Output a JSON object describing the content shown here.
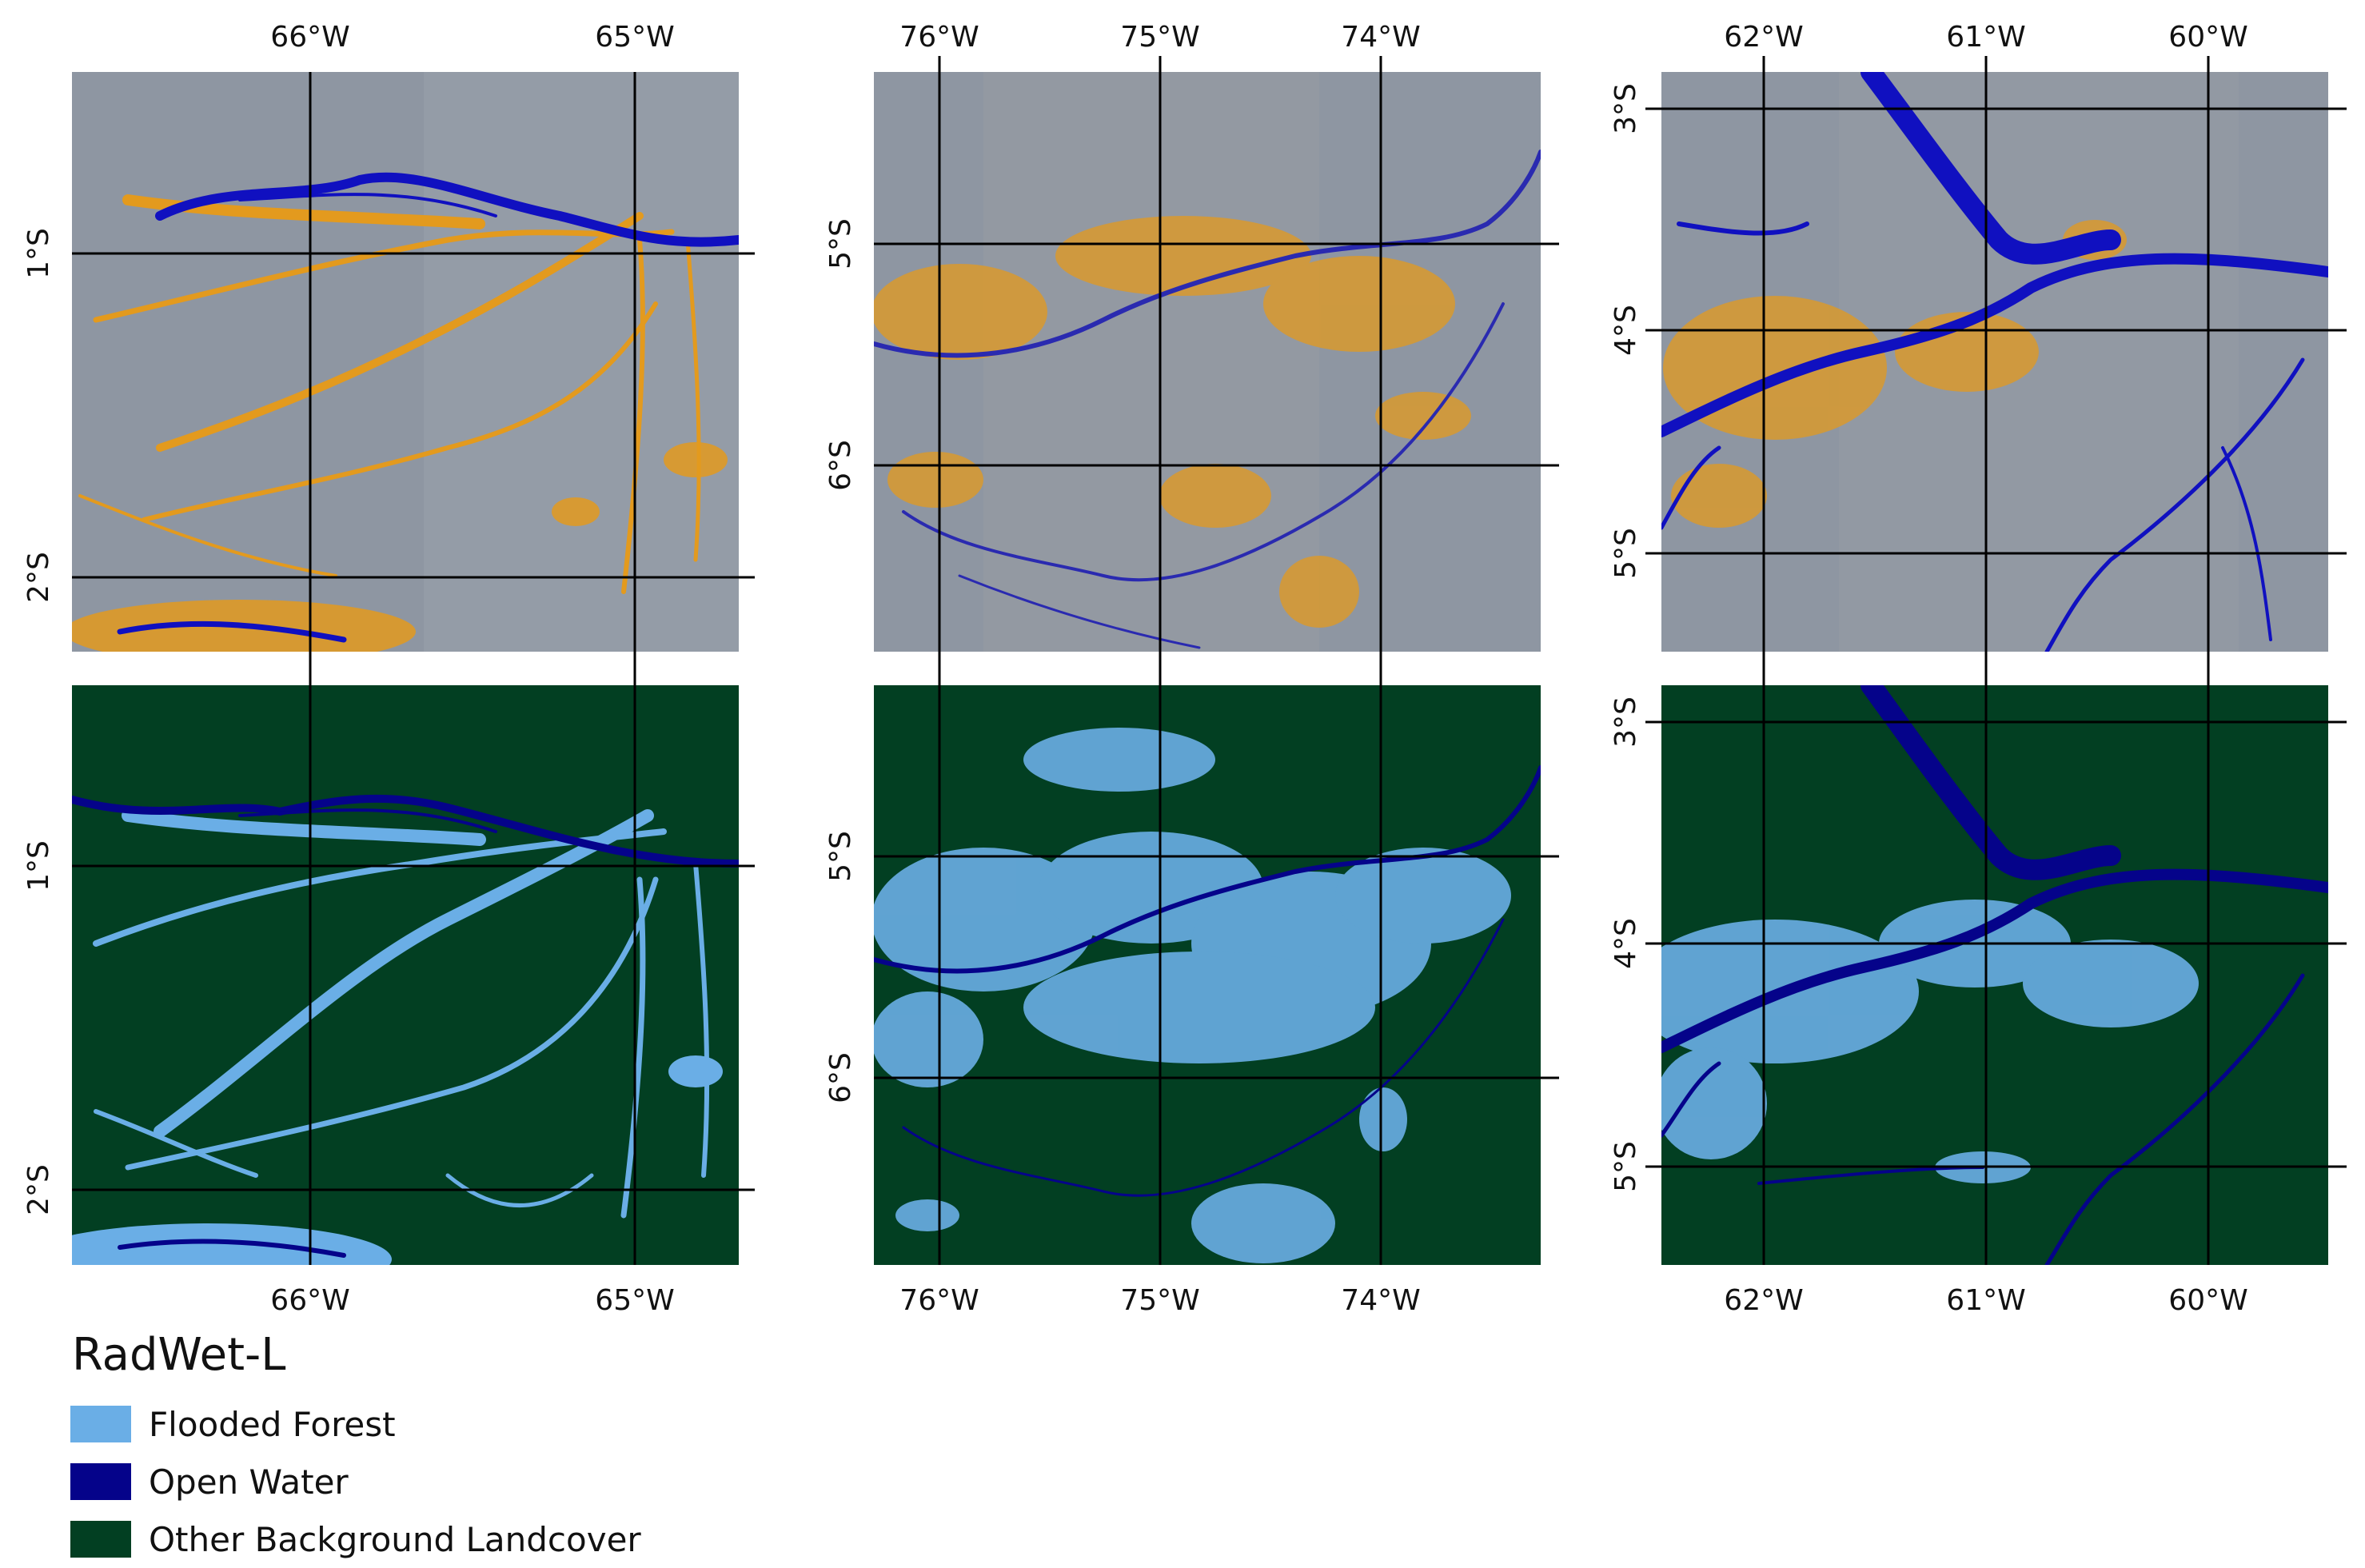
{
  "legend": {
    "title": "RadWet-L",
    "items": [
      {
        "label": "Flooded Forest",
        "color": "#6aaee6"
      },
      {
        "label": "Open Water",
        "color": "#05038a"
      },
      {
        "label": "Other Background Landcover",
        "color": "#023f22"
      }
    ]
  },
  "colors": {
    "sar_background": "#8e96a2",
    "sar_flooded": "#e39a1e",
    "water": "#1010c0",
    "class_water": "#05038a",
    "class_flooded": "#6aaee6",
    "class_background": "#023f22",
    "grid": "#000000"
  },
  "columns": [
    {
      "x_ticks": [
        "66°W",
        "65°W"
      ],
      "y_ticks_top": [
        "1°S",
        "2°S"
      ],
      "y_ticks_bottom": [
        "1°S",
        "2°S"
      ]
    },
    {
      "x_ticks": [
        "76°W",
        "75°W",
        "74°W"
      ],
      "y_ticks_top": [
        "5°S",
        "6°S"
      ],
      "y_ticks_bottom": [
        "5°S",
        "6°S"
      ]
    },
    {
      "x_ticks": [
        "62°W",
        "61°W",
        "60°W"
      ],
      "y_ticks_top": [
        "3°S",
        "4°S",
        "5°S"
      ],
      "y_ticks_bottom": [
        "3°S",
        "4°S",
        "5°S"
      ]
    }
  ]
}
